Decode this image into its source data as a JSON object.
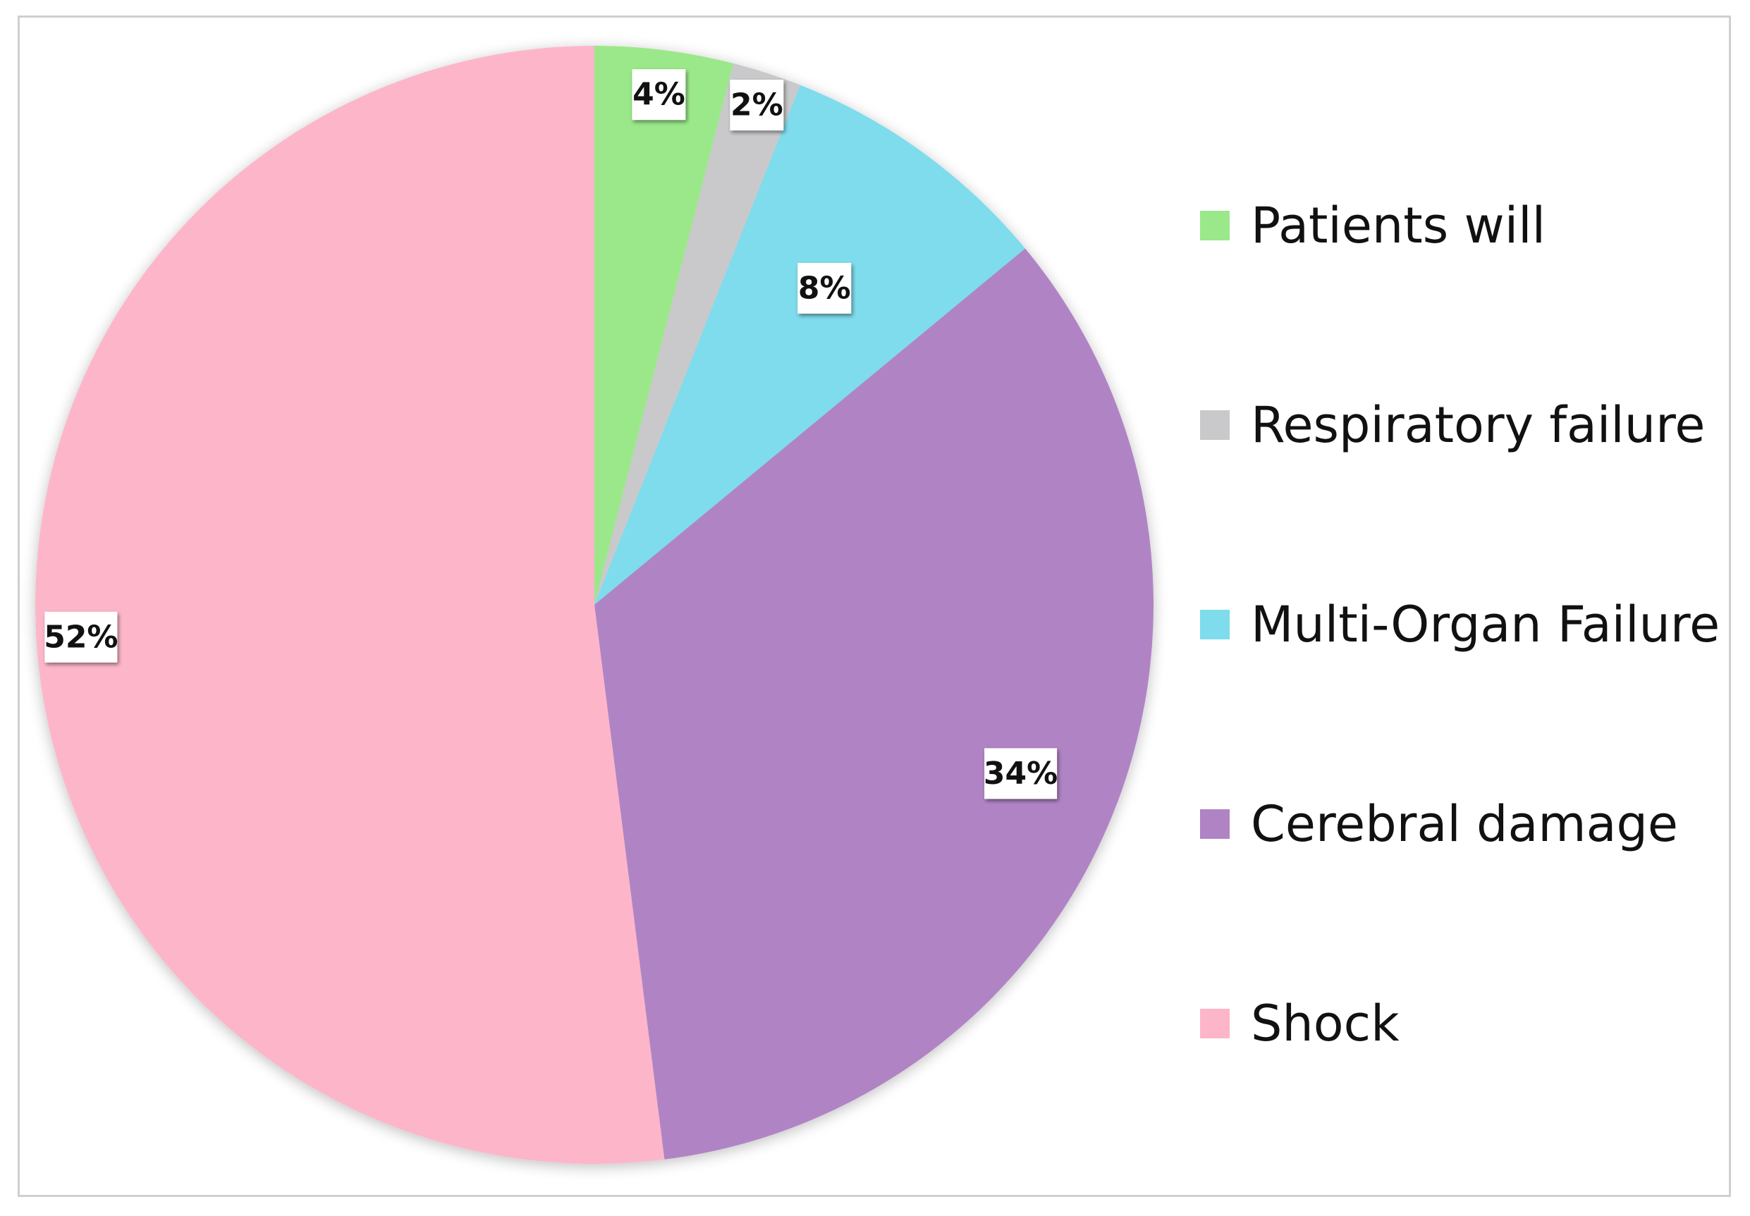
{
  "chart_data": {
    "type": "pie",
    "slices": [
      {
        "label": "Patients will",
        "value": 4,
        "display": "4%",
        "color": "#9be88a"
      },
      {
        "label": "Respiratory failure",
        "value": 2,
        "display": "2%",
        "color": "#c9c9cb"
      },
      {
        "label": "Multi-Organ Failure",
        "value": 8,
        "display": "8%",
        "color": "#7edcec"
      },
      {
        "label": "Cerebral damage",
        "value": 34,
        "display": "34%",
        "color": "#b084c4"
      },
      {
        "label": "Shock",
        "value": 52,
        "display": "52%",
        "color": "#fdb6c9"
      }
    ],
    "legend_position": "right",
    "start_angle": "top (12 o'clock), clockwise"
  }
}
